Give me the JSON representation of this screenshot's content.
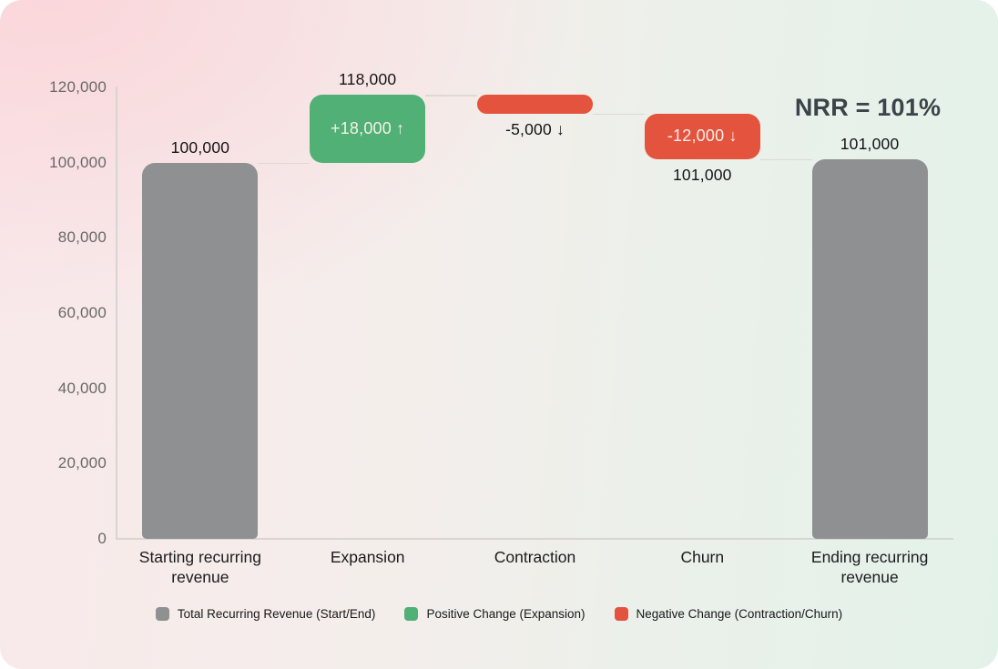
{
  "chart_data": {
    "type": "bar",
    "subtype": "waterfall",
    "title": "",
    "annotation": "NRR = 101%",
    "ylim": [
      0,
      120000
    ],
    "grid": false,
    "legend_position": "bottom-center",
    "yticks": [
      {
        "value": 0,
        "label": "0"
      },
      {
        "value": 20000,
        "label": "20,000"
      },
      {
        "value": 40000,
        "label": "40,000"
      },
      {
        "value": 60000,
        "label": "60,000"
      },
      {
        "value": 80000,
        "label": "80,000"
      },
      {
        "value": 100000,
        "label": "100,000"
      },
      {
        "value": 120000,
        "label": "120,000"
      }
    ],
    "bars": [
      {
        "category": "Starting recurring revenue",
        "from": 0,
        "to": 100000,
        "type": "total",
        "outer_label": "100,000",
        "outer_pos": "above",
        "inner_label": ""
      },
      {
        "category": "Expansion",
        "from": 100000,
        "to": 118000,
        "type": "positive",
        "outer_label": "118,000",
        "outer_pos": "above",
        "inner_label": "+18,000 ↑"
      },
      {
        "category": "Contraction",
        "from": 118000,
        "to": 113000,
        "type": "negative",
        "outer_label": "-5,000 ↓",
        "outer_pos": "below",
        "inner_label": ""
      },
      {
        "category": "Churn",
        "from": 113000,
        "to": 101000,
        "type": "negative",
        "outer_label": "101,000",
        "outer_pos": "below",
        "inner_label": "-12,000 ↓"
      },
      {
        "category": "Ending recurring revenue",
        "from": 0,
        "to": 101000,
        "type": "total",
        "outer_label": "101,000",
        "outer_pos": "above",
        "inner_label": ""
      }
    ],
    "legend": [
      {
        "label": "Total Recurring Revenue (Start/End)",
        "type": "total"
      },
      {
        "label": "Positive Change (Expansion)",
        "type": "positive"
      },
      {
        "label": "Negative Change (Contraction/Churn)",
        "type": "negative"
      }
    ],
    "colors": {
      "total": "#8f9092",
      "positive": "#50b075",
      "negative": "#e4533d",
      "annotation_text": "#3c4349",
      "inner_label_text": "#f6f1e9"
    }
  }
}
